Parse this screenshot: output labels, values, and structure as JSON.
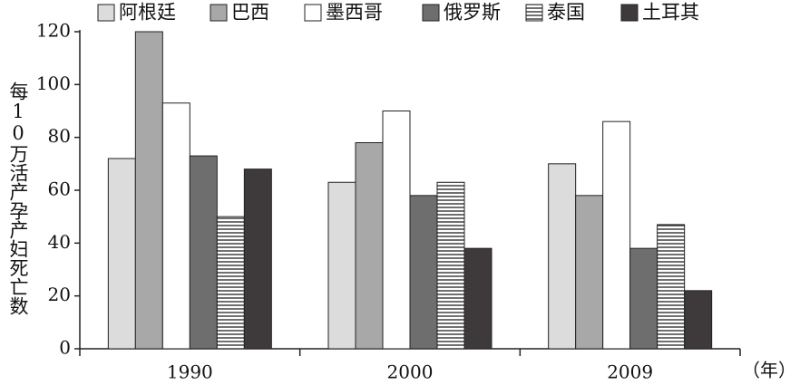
{
  "chart_data": {
    "type": "bar",
    "y_label": "每10万活产孕产妇死亡数",
    "x_label": "（年）",
    "categories": [
      "1990",
      "2000",
      "2009"
    ],
    "series": [
      {
        "name": "阿根廷",
        "color": "#dcdcdc",
        "values": [
          72,
          63,
          70
        ]
      },
      {
        "name": "巴西",
        "color": "#a8a8a8",
        "values": [
          120,
          78,
          58
        ]
      },
      {
        "name": "墨西哥",
        "color": "#ffffff",
        "values": [
          93,
          90,
          86
        ]
      },
      {
        "name": "俄罗斯",
        "color": "#6e6e6e",
        "values": [
          73,
          58,
          38
        ]
      },
      {
        "name": "泰国",
        "color": "#222222",
        "hatch": "horizontal",
        "values": [
          50,
          63,
          47
        ]
      },
      {
        "name": "土耳其",
        "color": "#3e3a3b",
        "values": [
          68,
          38,
          22
        ]
      }
    ],
    "ylim": [
      0,
      120
    ],
    "yticks": [
      0,
      20,
      40,
      60,
      80,
      100,
      120
    ],
    "grid": false
  }
}
